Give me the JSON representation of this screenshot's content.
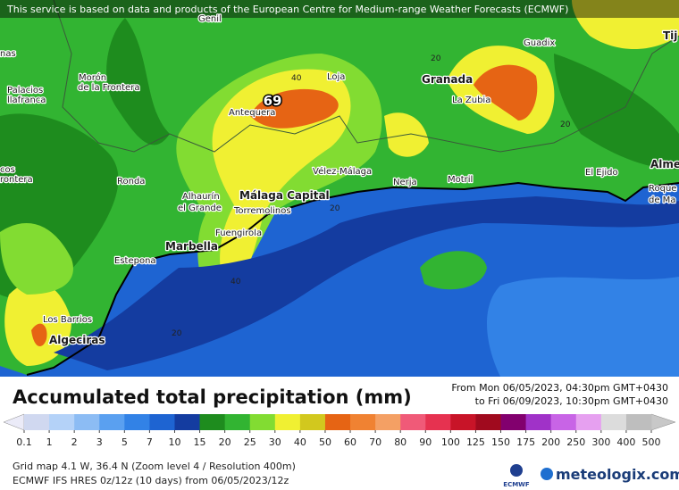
{
  "banner": "This service is based on data and products of the European Centre for Medium-range Weather Forecasts (ECMWF)",
  "places": [
    "Genil",
    "nas",
    "Morón",
    "de la Frontera",
    "Palacios",
    "llafranca",
    "Antequera",
    "Loja",
    "Granada",
    "La Zubia",
    "Guadix",
    "Vélez-Málaga",
    "Nerja",
    "Motril",
    "El Ejido",
    "Alme",
    "Roque",
    "de Ma",
    "Ronda",
    "Alhaurín",
    "el Grande",
    "Málaga Capital",
    "Torremolinos",
    "Fuengirola",
    "Marbella",
    "Estepona",
    "Los Barrios",
    "Algeciras",
    "cos",
    "rontera",
    "Tij"
  ],
  "contour_labels": [
    "40",
    "20",
    "20",
    "20",
    "40",
    "20"
  ],
  "max_value": 69,
  "legend": {
    "title": "Accumulated total precipitation (mm)",
    "period_from": "From Mon 06/05/2023, 04:30pm GMT+0430",
    "period_to": "to Fri 06/09/2023, 10:30pm GMT+0430",
    "ticks": [
      0.1,
      1,
      2,
      3,
      5,
      7,
      10,
      15,
      20,
      25,
      30,
      40,
      50,
      60,
      70,
      80,
      90,
      100,
      125,
      150,
      175,
      200,
      250,
      300,
      400,
      500
    ],
    "colors": [
      "#d0d8f0",
      "#b4d2f8",
      "#8cbcf4",
      "#5aa0f0",
      "#3282e6",
      "#1e64d2",
      "#143ca0",
      "#1e8c1e",
      "#32b432",
      "#82dc32",
      "#f0f032",
      "#d2c81e",
      "#e66414",
      "#f08232",
      "#f4a064",
      "#f05a78",
      "#e63250",
      "#c81428",
      "#a00a1e",
      "#82006e",
      "#a032c8",
      "#c864e6",
      "#e6a0f0",
      "#dcdcdc",
      "#bebebe"
    ],
    "under_color": "#ebebf8",
    "over_color": "#c8c8c8"
  },
  "footer": {
    "grid": "Grid map 4.1 W, 36.4 N (Zoom level 4 / Resolution 400m)",
    "model": "ECMWF IFS HRES 0z/12z (10 days) from 06/05/2023/12z",
    "ecmwf": "ECMWF",
    "brand": "meteologix.com"
  }
}
